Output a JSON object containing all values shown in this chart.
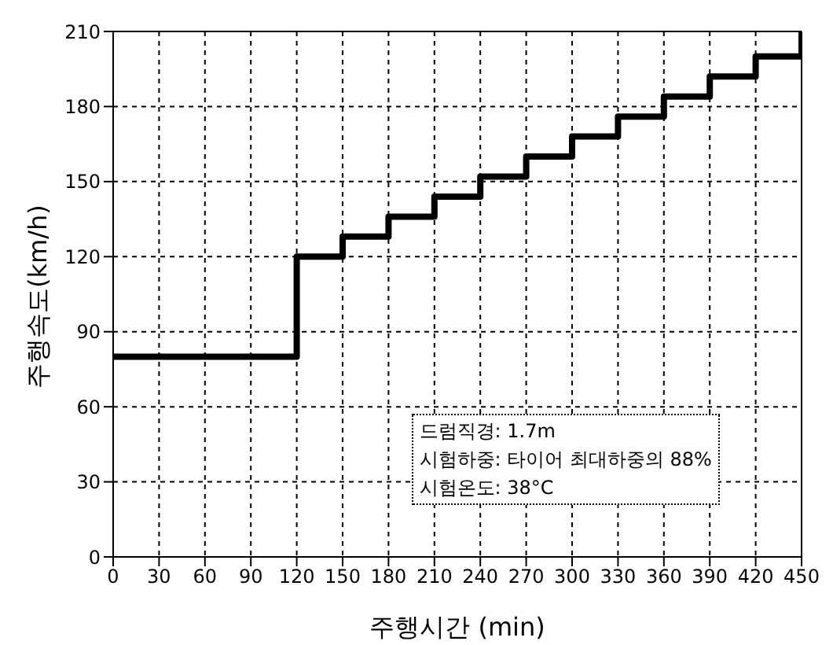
{
  "chart_data": {
    "type": "step",
    "xlabel": "주행시간 (min)",
    "ylabel": "주행속도(km/h)",
    "x": [
      0,
      120,
      150,
      180,
      210,
      240,
      270,
      300,
      330,
      360,
      390,
      420,
      450
    ],
    "series": [
      {
        "color": "#000000",
        "values": [
          80,
          120,
          128,
          136,
          144,
          152,
          160,
          168,
          176,
          184,
          192,
          200,
          210
        ]
      }
    ],
    "xlim": [
      0,
      450
    ],
    "xticks": [
      0,
      30,
      60,
      90,
      120,
      150,
      180,
      210,
      240,
      270,
      300,
      330,
      360,
      390,
      420,
      450
    ],
    "ylim": [
      0,
      210
    ],
    "yticks": [
      0,
      30,
      60,
      90,
      120,
      150,
      180,
      210
    ],
    "grid": true,
    "marker": "none",
    "line_style": "solid",
    "annotations": [
      "드럼직경: 1.7m",
      "시험하중: 타이어 최대하중의 88%",
      "시험온도: 38°C"
    ]
  }
}
